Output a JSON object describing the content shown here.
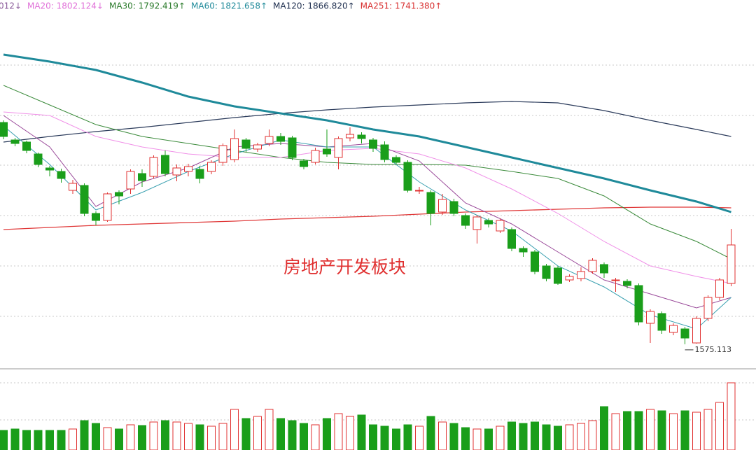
{
  "chart_data": {
    "type": "candlestick",
    "header": [
      {
        "text": "012↓",
        "color": "#8a5a9a"
      },
      {
        "text": "MA20: 1802.124↓",
        "color": "#e070d8"
      },
      {
        "text": "MA30: 1792.419↑",
        "color": "#2a7a2a"
      },
      {
        "text": "MA60: 1821.658↑",
        "color": "#1f8a9a"
      },
      {
        "text": "MA120: 1866.820↑",
        "color": "#203050"
      },
      {
        "text": "MA251: 1741.380↑",
        "color": "#d83030"
      }
    ],
    "annotation": "房地产开发板块",
    "ylim": [
      1542,
      2067
    ],
    "up_color": "#e03030",
    "down_color": "#1a9e1a",
    "open": [
      1892,
      1867,
      1864,
      1847,
      1827,
      1822,
      1795,
      1802,
      1762,
      1752,
      1792,
      1797,
      1819,
      1815,
      1845,
      1817,
      1822,
      1825,
      1822,
      1835,
      1839,
      1867,
      1854,
      1862,
      1872,
      1870,
      1837,
      1835,
      1854,
      1842,
      1870,
      1874,
      1867,
      1860,
      1842,
      1835,
      1795,
      1792,
      1764,
      1779,
      1759,
      1739,
      1752,
      1737,
      1739,
      1712,
      1707,
      1687,
      1684,
      1667,
      1669,
      1679,
      1689,
      1667,
      1665,
      1659,
      1605,
      1619,
      1592,
      1597,
      1577,
      1612,
      1642,
      1662
    ],
    "high": [
      1895,
      1870,
      1866,
      1849,
      1830,
      1826,
      1810,
      1805,
      1765,
      1792,
      1795,
      1825,
      1825,
      1845,
      1852,
      1832,
      1833,
      1830,
      1838,
      1862,
      1882,
      1870,
      1863,
      1882,
      1877,
      1873,
      1840,
      1856,
      1882,
      1872,
      1885,
      1878,
      1870,
      1865,
      1845,
      1838,
      1800,
      1795,
      1790,
      1783,
      1762,
      1760,
      1755,
      1755,
      1742,
      1715,
      1710,
      1690,
      1687,
      1675,
      1685,
      1698,
      1692,
      1670,
      1668,
      1662,
      1625,
      1622,
      1605,
      1600,
      1615,
      1645,
      1670,
      1740
    ],
    "low": [
      1868,
      1858,
      1848,
      1828,
      1815,
      1806,
      1790,
      1758,
      1745,
      1750,
      1775,
      1790,
      1800,
      1812,
      1815,
      1808,
      1815,
      1805,
      1818,
      1830,
      1835,
      1850,
      1850,
      1858,
      1860,
      1838,
      1825,
      1832,
      1843,
      1825,
      1865,
      1862,
      1850,
      1835,
      1832,
      1792,
      1790,
      1745,
      1760,
      1758,
      1740,
      1719,
      1742,
      1734,
      1708,
      1700,
      1675,
      1665,
      1660,
      1664,
      1665,
      1676,
      1670,
      1650,
      1655,
      1602,
      1577,
      1590,
      1588,
      1575.113,
      1576,
      1608,
      1638,
      1658
    ],
    "close": [
      1872,
      1862,
      1852,
      1832,
      1824,
      1812,
      1805,
      1762,
      1752,
      1790,
      1787,
      1822,
      1809,
      1842,
      1819,
      1827,
      1829,
      1812,
      1835,
      1859,
      1869,
      1855,
      1860,
      1872,
      1865,
      1842,
      1829,
      1852,
      1847,
      1869,
      1875,
      1869,
      1855,
      1839,
      1835,
      1795,
      1795,
      1762,
      1782,
      1762,
      1745,
      1757,
      1747,
      1752,
      1712,
      1707,
      1679,
      1669,
      1662,
      1672,
      1679,
      1695,
      1677,
      1667,
      1659,
      1607,
      1622,
      1595,
      1602,
      1584,
      1612,
      1642,
      1667,
      1717
    ],
    "volume_ylim": [
      0,
      113
    ],
    "volume": [
      28,
      30,
      28,
      28,
      28,
      28,
      30,
      42,
      38,
      32,
      30,
      36,
      35,
      40,
      42,
      40,
      38,
      36,
      34,
      38,
      58,
      45,
      48,
      58,
      45,
      42,
      38,
      36,
      45,
      52,
      48,
      50,
      36,
      34,
      30,
      36,
      34,
      48,
      40,
      38,
      32,
      30,
      30,
      34,
      40,
      38,
      40,
      36,
      34,
      36,
      38,
      42,
      62,
      52,
      55,
      55,
      58,
      56,
      52,
      56,
      54,
      58,
      68,
      96
    ],
    "ma_x": [
      0,
      4,
      8,
      12,
      16,
      20,
      24,
      28,
      32,
      36,
      40,
      44,
      48,
      52,
      56,
      60,
      63
    ],
    "ma_series": [
      {
        "color": "#e03838",
        "width": 1.3,
        "values": [
          1739,
          1742,
          1745,
          1747,
          1749,
          1751,
          1754,
          1756,
          1758,
          1761,
          1764,
          1766,
          1768,
          1770,
          1771,
          1771,
          1770
        ]
      },
      {
        "color": "#2a3a5a",
        "width": 1.2,
        "values": [
          1864,
          1872,
          1879,
          1885,
          1892,
          1899,
          1905,
          1910,
          1914,
          1917,
          1920,
          1922,
          1920,
          1909,
          1895,
          1882,
          1872
        ]
      },
      {
        "color": "#1f8a9a",
        "width": 3,
        "values": [
          1989,
          1979,
          1967,
          1949,
          1929,
          1915,
          1905,
          1895,
          1882,
          1872,
          1857,
          1842,
          1827,
          1812,
          1795,
          1779,
          1764
        ]
      },
      {
        "color": "#3a8a3a",
        "width": 1,
        "values": [
          1945,
          1917,
          1889,
          1872,
          1862,
          1852,
          1842,
          1835,
          1832,
          1832,
          1831,
          1822,
          1812,
          1787,
          1747,
          1722,
          1697
        ]
      },
      {
        "color": "#f090e8",
        "width": 1,
        "values": [
          1907,
          1902,
          1872,
          1857,
          1847,
          1842,
          1842,
          1852,
          1855,
          1847,
          1827,
          1797,
          1762,
          1722,
          1687,
          1672,
          1662
        ]
      },
      {
        "color": "#9a4a9a",
        "width": 1,
        "values": [
          1902,
          1857,
          1772,
          1807,
          1827,
          1857,
          1862,
          1857,
          1862,
          1837,
          1777,
          1747,
          1707,
          1667,
          1647,
          1627,
          1642
        ]
      },
      {
        "color": "#3aa0b0",
        "width": 1,
        "values": [
          1887,
          1832,
          1767,
          1792,
          1822,
          1847,
          1867,
          1857,
          1857,
          1807,
          1767,
          1737,
          1687,
          1657,
          1617,
          1597,
          1642
        ]
      }
    ]
  }
}
